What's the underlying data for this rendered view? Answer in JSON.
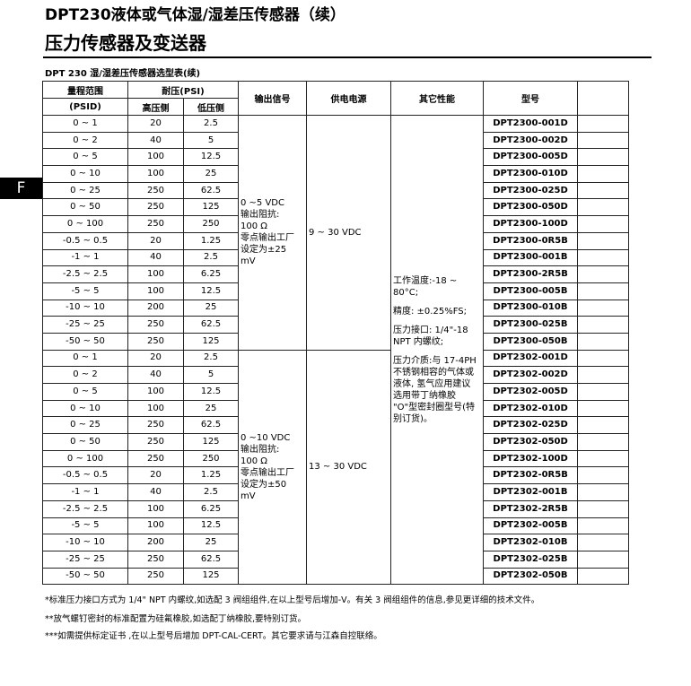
{
  "header": {
    "subtitle": "DPT230液体或气体湿/湿差压传感器（续）",
    "title": "压力传感器及变送器",
    "tab": "F"
  },
  "table": {
    "caption": "DPT 230 湿/湿差压传感器选型表(续)",
    "headers": {
      "range": "量程范围",
      "range_unit": "(PSID)",
      "pressure": "耐压(PSI)",
      "high": "高压侧",
      "low": "低压侧",
      "output": "输出信号",
      "supply": "供电电源",
      "other": "其它性能",
      "model": "型号"
    },
    "groups": [
      {
        "output": [
          "0 ~5 VDC",
          "输出阻抗:",
          "100 Ω",
          "零点输出工厂",
          "设定为±25",
          "mV"
        ],
        "supply": "9 ~ 30 VDC",
        "rows": [
          [
            "0 ~ 1",
            20,
            2.5,
            "DPT2300-001D"
          ],
          [
            "0 ~ 2",
            40,
            5,
            "DPT2300-002D"
          ],
          [
            "0 ~ 5",
            100,
            12.5,
            "DPT2300-005D"
          ],
          [
            "0 ~ 10",
            100,
            25,
            "DPT2300-010D"
          ],
          [
            "0 ~ 25",
            250,
            62.5,
            "DPT2300-025D"
          ],
          [
            "0 ~ 50",
            250,
            125,
            "DPT2300-050D"
          ],
          [
            "0 ~ 100",
            250,
            250,
            "DPT2300-100D"
          ],
          [
            "-0.5 ~ 0.5",
            20,
            1.25,
            "DPT2300-0R5B"
          ],
          [
            "-1 ~ 1",
            40,
            2.5,
            "DPT2300-001B"
          ],
          [
            "-2.5 ~ 2.5",
            100,
            6.25,
            "DPT2300-2R5B"
          ],
          [
            "-5 ~ 5",
            100,
            12.5,
            "DPT2300-005B"
          ],
          [
            "-10 ~ 10",
            200,
            25,
            "DPT2300-010B"
          ],
          [
            "-25 ~ 25",
            250,
            62.5,
            "DPT2300-025B"
          ],
          [
            "-50 ~ 50",
            250,
            125,
            "DPT2300-050B"
          ]
        ]
      },
      {
        "output": [
          "0 ~10 VDC",
          "输出阻抗:",
          "100 Ω",
          "零点输出工厂",
          "设定为±50",
          "mV"
        ],
        "supply": "13 ~ 30 VDC",
        "rows": [
          [
            "0 ~ 1",
            20,
            2.5,
            "DPT2302-001D"
          ],
          [
            "0 ~ 2",
            40,
            5,
            "DPT2302-002D"
          ],
          [
            "0 ~ 5",
            100,
            12.5,
            "DPT2302-005D"
          ],
          [
            "0 ~ 10",
            100,
            25,
            "DPT2302-010D"
          ],
          [
            "0 ~ 25",
            250,
            62.5,
            "DPT2302-025D"
          ],
          [
            "0 ~ 50",
            250,
            125,
            "DPT2302-050D"
          ],
          [
            "0 ~ 100",
            250,
            250,
            "DPT2302-100D"
          ],
          [
            "-0.5 ~ 0.5",
            20,
            1.25,
            "DPT2302-0R5B"
          ],
          [
            "-1 ~ 1",
            40,
            2.5,
            "DPT2302-001B"
          ],
          [
            "-2.5 ~ 2.5",
            100,
            6.25,
            "DPT2302-2R5B"
          ],
          [
            "-5 ~ 5",
            100,
            12.5,
            "DPT2302-005B"
          ],
          [
            "-10 ~ 10",
            200,
            25,
            "DPT2302-010B"
          ],
          [
            "-25 ~ 25",
            250,
            62.5,
            "DPT2302-025B"
          ],
          [
            "-50 ~ 50",
            250,
            125,
            "DPT2302-050B"
          ]
        ]
      }
    ],
    "other": [
      "工作温度:-18 ~ 80°C;",
      "精度: ±0.25%FS;",
      "压力接口: 1/4\"-18",
      "NPT 内螺纹;",
      "压力介质:与 17-4PH",
      "不锈钢相容的气体或",
      "液体, 氢气应用建议",
      "选用带丁纳橡胶",
      "\"O\"型密封圈型号(特",
      "别订货)。"
    ]
  },
  "footnotes": [
    "*标准压力接口方式为 1/4\" NPT 内螺纹,如选配 3 阀组组件,在以上型号后增加-V。有关 3 阀组组件的信息,参见更详细的技术文件。",
    "**放气螺钉密封的标准配置为硅氟橡胶,如选配丁纳橡胶,要特别订货。",
    "***如需提供标定证书 ,在以上型号后增加 DPT-CAL-CERT。其它要求请与江森自控联络。"
  ]
}
